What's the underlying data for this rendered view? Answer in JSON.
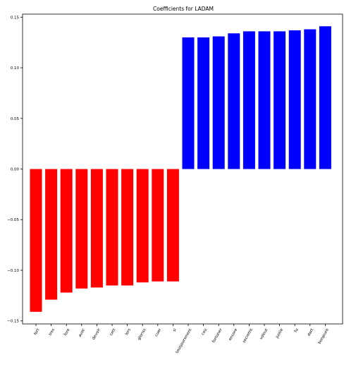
{
  "chart_data": {
    "type": "bar",
    "title": "Coefficients for LADAM",
    "xlabel": "",
    "ylabel": "",
    "ylim": [
      -0.153,
      0.153
    ],
    "yticks": [
      -0.15,
      -0.1,
      -0.05,
      0.0,
      0.05,
      0.1,
      0.15
    ],
    "ytick_labels": [
      "−0.15",
      "−0.10",
      "−0.05",
      "0.00",
      "0.05",
      "0.10",
      "0.15"
    ],
    "grid": false,
    "colors": {
      "negative": "#ff0000",
      "positive": "#0000ff"
    },
    "categories": [
      "fort",
      "tres",
      "fore",
      "avec",
      "devoir",
      "cett",
      "lors",
      "gloriss",
      "cuer",
      "si",
      "tousjoursment",
      "cou",
      "fortuner",
      "encore",
      "secretre",
      "volout",
      "justie",
      "fu",
      "dart",
      "bonjoure"
    ],
    "values": [
      -0.141,
      -0.129,
      -0.122,
      -0.118,
      -0.117,
      -0.115,
      -0.115,
      -0.112,
      -0.111,
      -0.111,
      0.13,
      0.13,
      0.131,
      0.134,
      0.136,
      0.136,
      0.136,
      0.137,
      0.138,
      0.141
    ]
  }
}
